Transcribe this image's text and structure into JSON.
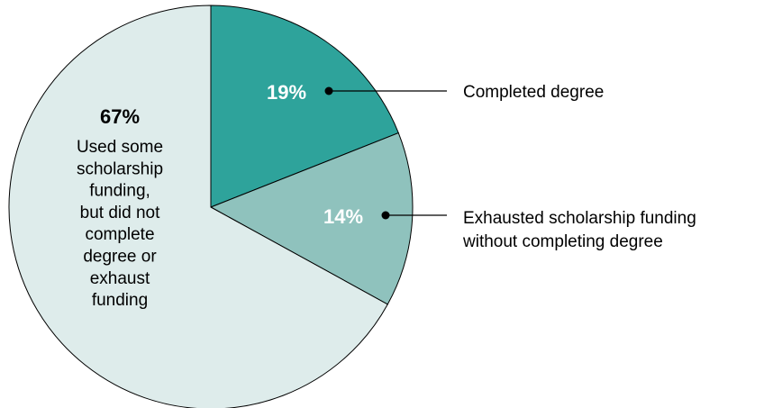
{
  "chart_data": {
    "type": "pie",
    "start_angle_deg": 0,
    "direction": "clockwise",
    "series": [
      {
        "name": "Completed degree",
        "percent_label": "19%",
        "value": 19,
        "color": "#2ea39b",
        "label_style": "inside-white",
        "callout": true
      },
      {
        "name": "Exhausted scholarship funding without completing degree",
        "legend_lines": [
          "Exhausted scholarship funding",
          "without completing degree"
        ],
        "percent_label": "14%",
        "value": 14,
        "color": "#8fc2bd",
        "label_style": "inside-white",
        "callout": true
      },
      {
        "name": "Used some scholarship funding, but did not complete degree or exhaust funding",
        "desc_lines": [
          "Used some",
          "scholarship",
          "funding,",
          "but did not",
          "complete",
          "degree or",
          "exhaust",
          "funding"
        ],
        "percent_label": "67%",
        "value": 67,
        "color": "#deeceb",
        "label_style": "inside-dark",
        "callout": false
      }
    ]
  }
}
